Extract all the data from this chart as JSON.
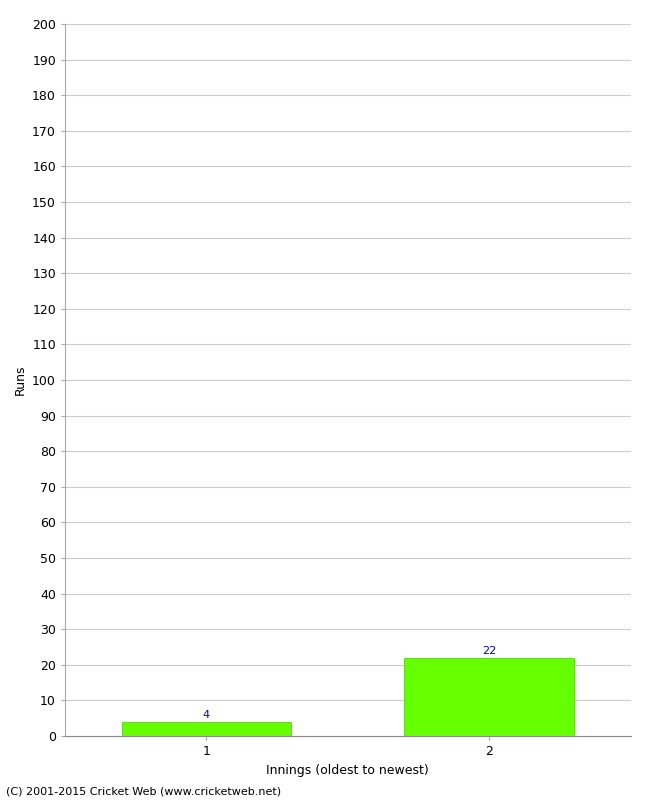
{
  "categories": [
    1,
    2
  ],
  "values": [
    4,
    22
  ],
  "bar_color": "#66ff00",
  "bar_edge_color": "#44cc00",
  "xlabel": "Innings (oldest to newest)",
  "ylabel": "Runs",
  "ylim": [
    0,
    200
  ],
  "yticks": [
    0,
    10,
    20,
    30,
    40,
    50,
    60,
    70,
    80,
    90,
    100,
    110,
    120,
    130,
    140,
    150,
    160,
    170,
    180,
    190,
    200
  ],
  "xticks": [
    1,
    2
  ],
  "xlim": [
    0.5,
    2.5
  ],
  "annotation_color": "#0000cc",
  "annotation_fontsize": 8,
  "footer": "(C) 2001-2015 Cricket Web (www.cricketweb.net)",
  "footer_fontsize": 8,
  "background_color": "#ffffff",
  "grid_color": "#cccccc",
  "bar_width": 0.6,
  "tick_fontsize": 9,
  "ylabel_fontsize": 9,
  "xlabel_fontsize": 9
}
